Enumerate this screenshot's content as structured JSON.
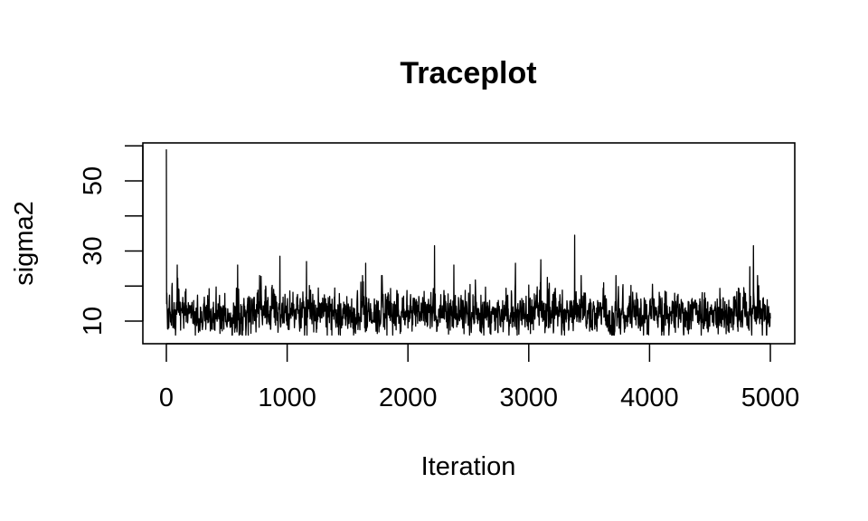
{
  "chart_data": {
    "type": "line",
    "title": "Traceplot",
    "xlabel": "Iteration",
    "ylabel": "sigma2",
    "xlim": [
      0,
      5000
    ],
    "ylim": [
      5,
      61
    ],
    "x_ticks": [
      0,
      1000,
      2000,
      3000,
      4000,
      5000
    ],
    "x_tick_labels": [
      "0",
      "1000",
      "2000",
      "3000",
      "4000",
      "5000"
    ],
    "y_ticks": [
      10,
      20,
      30,
      40,
      50,
      60
    ],
    "y_tick_labels": [
      "10",
      "",
      "30",
      "",
      "50",
      ""
    ],
    "grid": false,
    "legend": "none",
    "series": [
      {
        "n_iterations": 5000,
        "initial_value": 59,
        "typical_range": [
          7,
          20
        ],
        "center": 12,
        "spikes": [
          {
            "x": 90,
            "y": 26
          },
          {
            "x": 590,
            "y": 26
          },
          {
            "x": 940,
            "y": 28.5
          },
          {
            "x": 1160,
            "y": 27
          },
          {
            "x": 1650,
            "y": 26.5
          },
          {
            "x": 2220,
            "y": 31.5
          },
          {
            "x": 2380,
            "y": 26
          },
          {
            "x": 2890,
            "y": 26.5
          },
          {
            "x": 3100,
            "y": 27.5
          },
          {
            "x": 3380,
            "y": 34.5
          },
          {
            "x": 4830,
            "y": 25.5
          },
          {
            "x": 4860,
            "y": 31.5
          }
        ],
        "color": "#000000"
      }
    ]
  }
}
